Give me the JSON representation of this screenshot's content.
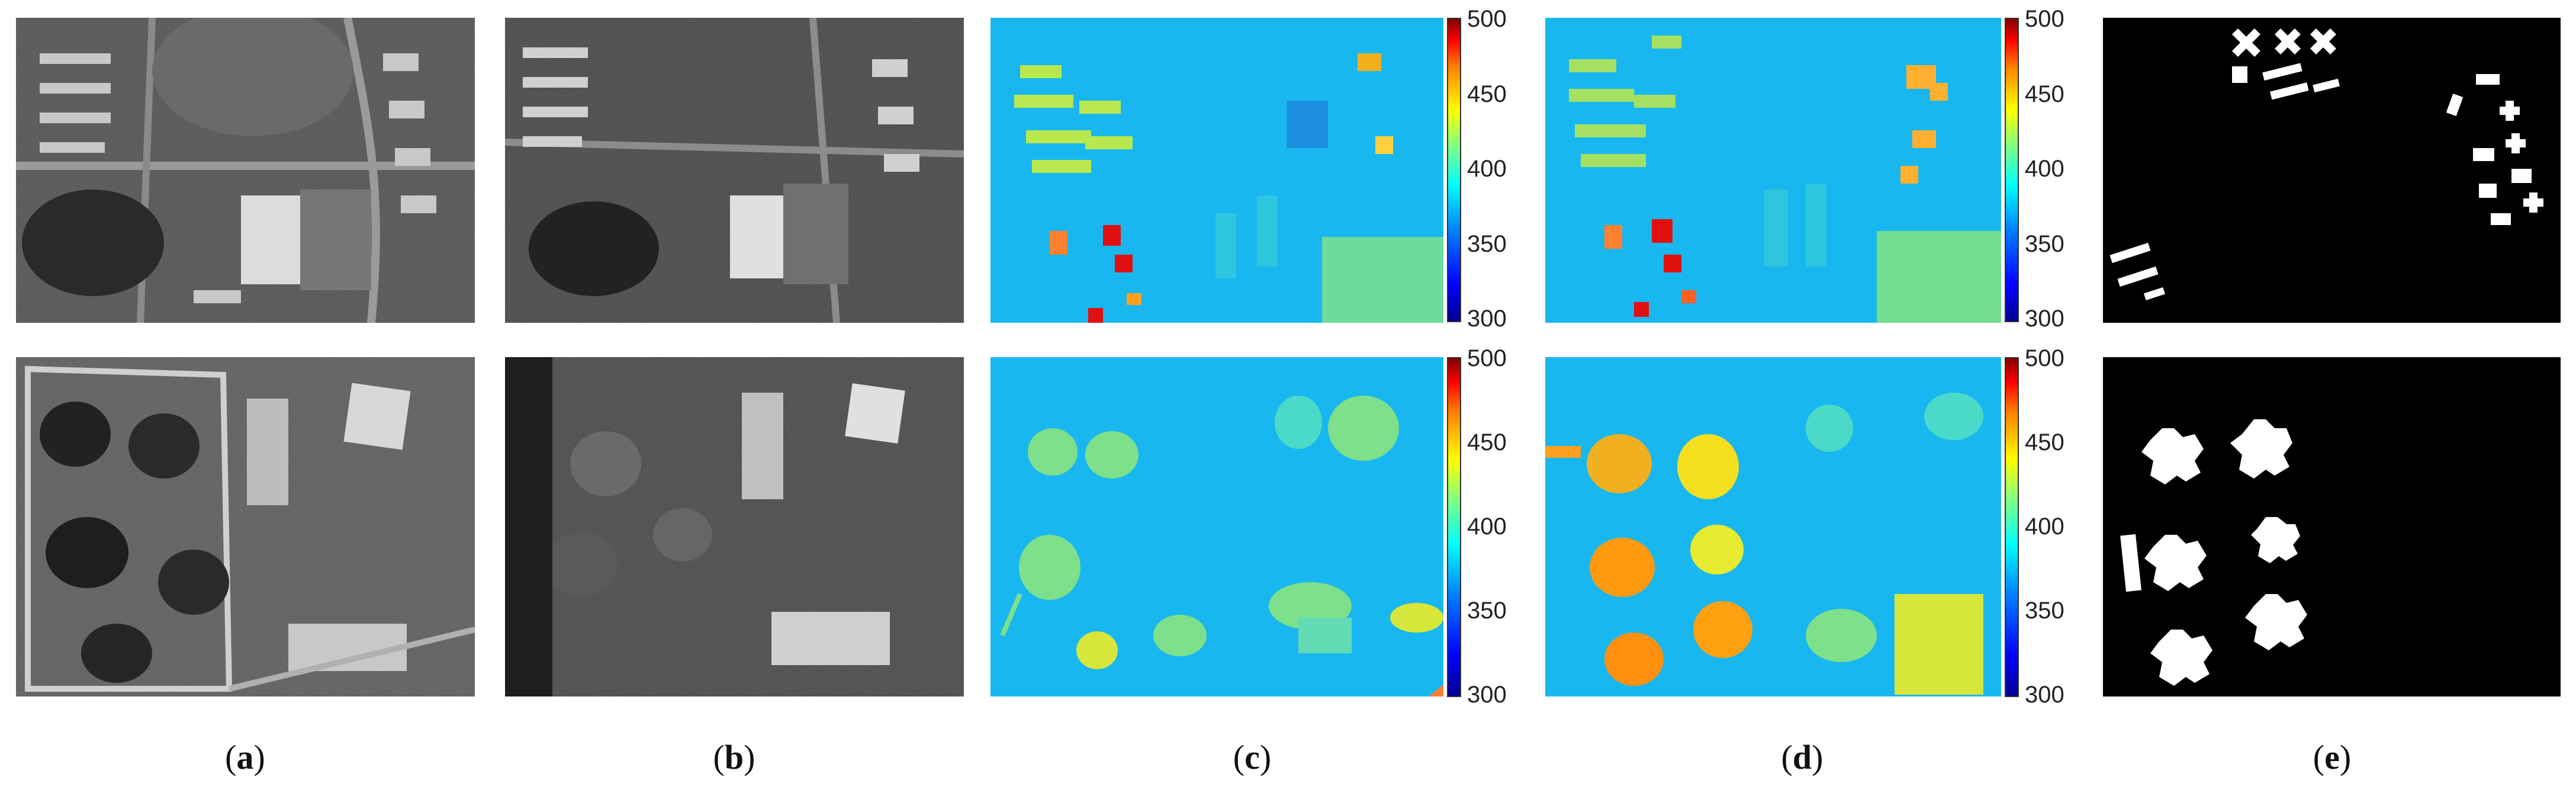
{
  "colorbar": {
    "ticks": [
      "500",
      "450",
      "400",
      "350",
      "300"
    ]
  },
  "captions": [
    {
      "open": "(",
      "letter": "a",
      "close": ")"
    },
    {
      "open": "(",
      "letter": "b",
      "close": ")"
    },
    {
      "open": "(",
      "letter": "c",
      "close": ")"
    },
    {
      "open": "(",
      "letter": "d",
      "close": ")"
    },
    {
      "open": "(",
      "letter": "e",
      "close": ")"
    }
  ],
  "colormap": "jet",
  "colors": {
    "background": "#ffffff",
    "mask": "#ffffff",
    "mask_bg": "#000000",
    "dem_base": "#19b7f0"
  }
}
